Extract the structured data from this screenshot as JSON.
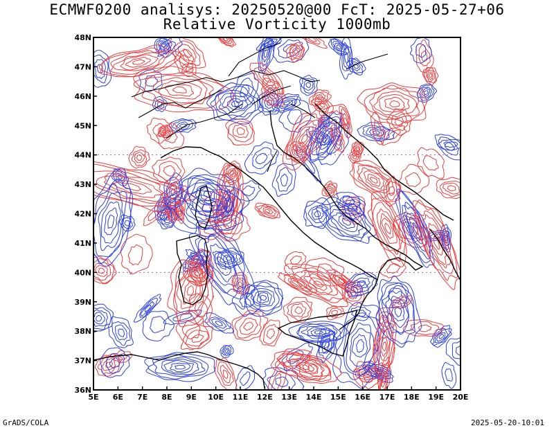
{
  "title_line1": "ECMWF0200 analisys: 20250520@00 FcT: 2025-05-27+06",
  "title_line2": "Relative Vorticity 1000mb",
  "x_ticks": [
    "5E",
    "6E",
    "7E",
    "8E",
    "9E",
    "10E",
    "11E",
    "12E",
    "13E",
    "14E",
    "15E",
    "16E",
    "17E",
    "18E",
    "19E",
    "20E"
  ],
  "y_ticks": [
    "48N",
    "47N",
    "46N",
    "45N",
    "44N",
    "43N",
    "42N",
    "41N",
    "40N",
    "39N",
    "38N",
    "37N",
    "36N"
  ],
  "footer_left": "GrADS/COLA",
  "footer_right": "2025-05-20-10:01",
  "colors": {
    "positive_contour": "#2b3fe6",
    "negative_contour": "#ef3b3b",
    "coastline": "#000000",
    "grid": "#9b5fb3"
  }
}
